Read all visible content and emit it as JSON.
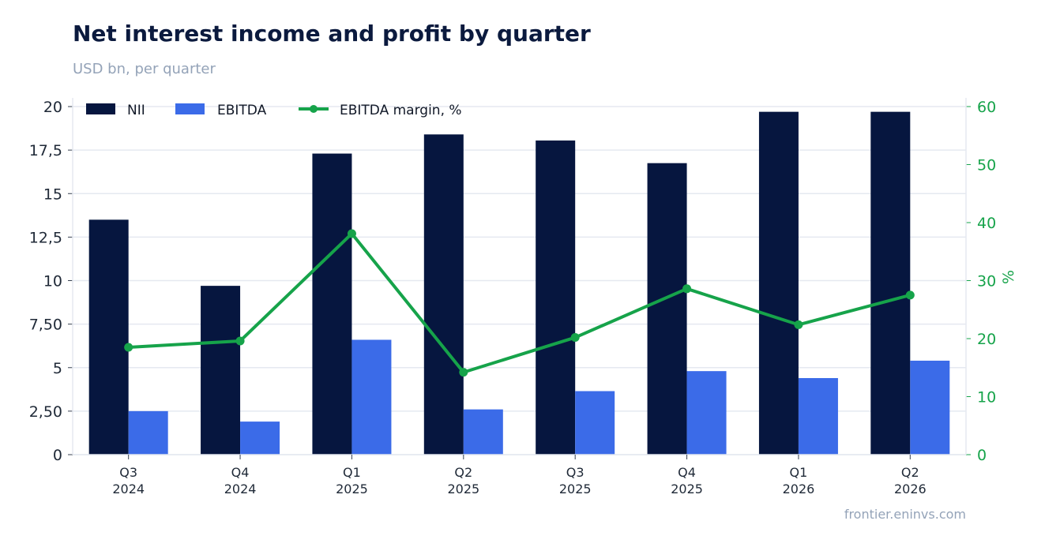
{
  "title": "Net interest income and profit by quarter",
  "subtitle": "USD bn, per quarter",
  "source": "frontier.eninvs.com",
  "colors": {
    "nii": "#06163f",
    "ebitda": "#3b6be8",
    "margin": "#16a34a"
  },
  "chart_data": {
    "type": "bar",
    "categories": [
      [
        "Q3",
        "2024"
      ],
      [
        "Q4",
        "2024"
      ],
      [
        "Q1",
        "2025"
      ],
      [
        "Q2",
        "2025"
      ],
      [
        "Q3",
        "2025"
      ],
      [
        "Q4",
        "2025"
      ],
      [
        "Q1",
        "2026"
      ],
      [
        "Q2",
        "2026"
      ]
    ],
    "series": [
      {
        "name": "NII",
        "type": "bar",
        "axis": "left",
        "values": [
          13.5,
          9.7,
          17.3,
          18.4,
          18.05,
          16.75,
          19.7,
          19.7
        ]
      },
      {
        "name": "EBITDA",
        "type": "bar",
        "axis": "left",
        "values": [
          2.5,
          1.9,
          6.6,
          2.6,
          3.65,
          4.8,
          4.4,
          5.4
        ]
      },
      {
        "name": "EBITDA margin, %",
        "type": "line",
        "axis": "right",
        "values": [
          18.5,
          19.6,
          38.1,
          14.2,
          20.2,
          28.6,
          22.4,
          27.5
        ]
      }
    ],
    "y_left": {
      "ylim": [
        0,
        20.5
      ],
      "ticks": [
        0,
        2.5,
        5,
        7.5,
        10,
        12.5,
        15,
        17.5,
        20
      ],
      "tick_labels": [
        "0",
        "2,50",
        "5",
        "7,50",
        "10",
        "12,5",
        "15",
        "17,5",
        "20"
      ]
    },
    "y_right": {
      "label": "%",
      "ylim": [
        0,
        61.5
      ],
      "ticks": [
        0,
        10,
        20,
        30,
        40,
        50,
        60
      ],
      "tick_labels": [
        "0",
        "10",
        "20",
        "30",
        "40",
        "50",
        "60"
      ]
    },
    "grid": true,
    "legend": "top-left"
  }
}
